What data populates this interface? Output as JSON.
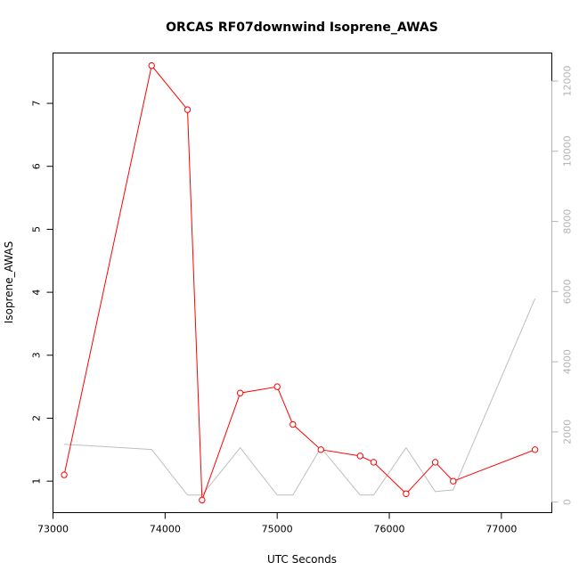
{
  "chart_data": {
    "type": "line",
    "title": "ORCAS RF07downwind Isoprene_AWAS",
    "xlabel": "UTC Seconds",
    "ylabel": "Isoprene_AWAS",
    "xlim": [
      73000,
      77450
    ],
    "ylim": [
      0.5,
      7.8
    ],
    "y2lim": [
      -300,
      12800
    ],
    "x_ticks": [
      73000,
      74000,
      75000,
      76000,
      77000
    ],
    "y_ticks": [
      1,
      2,
      3,
      4,
      5,
      6,
      7
    ],
    "y2_ticks": [
      0,
      2000,
      4000,
      6000,
      8000,
      10000,
      12000
    ],
    "colors": {
      "primary": "#ff0000",
      "secondary": "#bebebe",
      "secondary_axis": "#b4b4b4"
    },
    "series": [
      {
        "axis": "left",
        "style": "line-points",
        "x": [
          73100,
          73880,
          74200,
          74330,
          74670,
          75000,
          75140,
          75390,
          75740,
          75860,
          76150,
          76410,
          76570,
          77300
        ],
        "y": [
          1.1,
          7.6,
          6.9,
          0.7,
          2.4,
          2.5,
          1.9,
          1.5,
          1.4,
          1.3,
          0.8,
          1.3,
          1.0,
          1.5
        ]
      },
      {
        "axis": "right",
        "style": "line",
        "x": [
          73100,
          73880,
          74200,
          74330,
          74670,
          75000,
          75140,
          75390,
          75740,
          75860,
          76150,
          76410,
          76570,
          77300
        ],
        "y": [
          1650,
          1500,
          200,
          200,
          1550,
          200,
          200,
          1550,
          200,
          200,
          1550,
          300,
          350,
          5800
        ]
      }
    ]
  }
}
